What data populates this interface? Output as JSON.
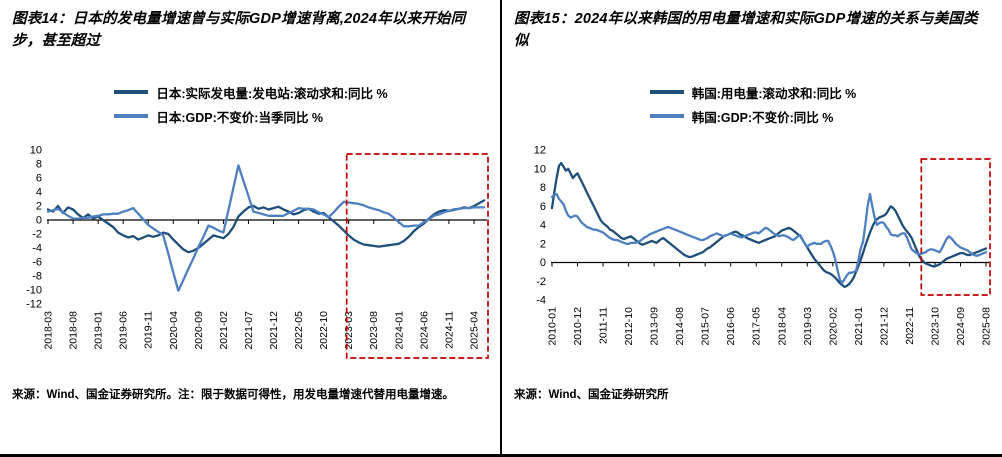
{
  "chart_data": [
    {
      "type": "line",
      "title": "图表14：日本的发电量增速曾与实际GDP增速背离,2024年以来开始同步，甚至超过",
      "source": "来源：Wind、国金证券研究所。注：限于数据可得性，用发电量增速代替用电量增速。",
      "ylim": [
        -12,
        10
      ],
      "ytick_step": 2,
      "label_step": 5,
      "x_tick_labels": [
        "2018-03",
        "2018-08",
        "2019-01",
        "2019-06",
        "2019-11",
        "2020-04",
        "2020-09",
        "2021-02",
        "2021-07",
        "2021-12",
        "2022-05",
        "2022-10",
        "2023-03",
        "2023-08",
        "2024-01",
        "2024-06",
        "2024-11",
        "2025-04"
      ],
      "series": [
        {
          "name": "日本:实际发电量:发电站:滚动求和:同比 %",
          "color": "#1F4E79",
          "values": [
            1.5,
            1.2,
            2.0,
            1.0,
            1.8,
            1.5,
            0.8,
            0.3,
            0.8,
            0.2,
            0.5,
            0.0,
            -0.5,
            -1.0,
            -1.8,
            -2.2,
            -2.5,
            -2.3,
            -2.8,
            -2.5,
            -2.2,
            -2.4,
            -2.2,
            -1.8,
            -2.0,
            -2.8,
            -3.5,
            -4.2,
            -4.6,
            -4.4,
            -4.0,
            -3.4,
            -2.8,
            -2.2,
            -2.4,
            -2.6,
            -2.0,
            -1.0,
            0.5,
            1.2,
            1.8,
            2.0,
            1.6,
            1.8,
            1.5,
            1.7,
            1.9,
            1.5,
            1.2,
            0.8,
            1.0,
            1.4,
            1.6,
            1.2,
            0.9,
            1.0,
            0.4,
            -0.2,
            -0.8,
            -1.5,
            -2.2,
            -2.8,
            -3.2,
            -3.5,
            -3.6,
            -3.7,
            -3.8,
            -3.7,
            -3.6,
            -3.5,
            -3.4,
            -3.0,
            -2.4,
            -1.6,
            -1.0,
            -0.5,
            0.2,
            0.8,
            1.2,
            1.4,
            1.3,
            1.5,
            1.6,
            1.8,
            1.7,
            2.0,
            2.4,
            2.8
          ]
        },
        {
          "name": "日本:GDP:不变价:当季同比 %",
          "color": "#4E7FBF",
          "values": [
            1.2,
            1.4,
            1.6,
            1.1,
            0.6,
            0.2,
            0.2,
            0.3,
            0.3,
            0.5,
            0.6,
            0.8,
            0.8,
            0.9,
            0.9,
            1.2,
            1.4,
            1.7,
            0.9,
            0.1,
            -0.7,
            -1.2,
            -1.7,
            -2.2,
            -4.8,
            -7.5,
            -10.1,
            -8.6,
            -7.0,
            -5.5,
            -3.9,
            -2.4,
            -0.8,
            -1.1,
            -1.5,
            -1.8,
            1.4,
            4.6,
            7.8,
            5.6,
            3.4,
            1.2,
            1.0,
            0.8,
            0.6,
            0.6,
            0.6,
            0.6,
            1.0,
            1.3,
            1.7,
            1.6,
            1.6,
            1.5,
            1.1,
            0.8,
            0.4,
            1.1,
            1.9,
            2.6,
            2.5,
            2.4,
            2.3,
            2.1,
            1.8,
            1.6,
            1.4,
            1.1,
            0.9,
            0.3,
            -0.3,
            -0.9,
            -0.9,
            -0.8,
            -0.8,
            -0.3,
            0.1,
            0.6,
            0.8,
            1.1,
            1.3,
            1.4,
            1.6,
            1.7,
            1.7,
            1.8,
            1.8,
            1.8
          ]
        }
      ],
      "highlight": {
        "from_index": 60,
        "to_index": 87,
        "color": "#C00000"
      }
    },
    {
      "type": "line",
      "title": "图表15：2024年以来韩国的用电量增速和实际GDP增速的关系与美国类似",
      "source": "来源：Wind、国金证券研究所",
      "ylim": [
        -4,
        12
      ],
      "ytick_step": 2,
      "label_step": 11,
      "x_tick_labels": [
        "2010-01",
        "2010-12",
        "2011-11",
        "2012-10",
        "2013-09",
        "2014-08",
        "2015-07",
        "2016-06",
        "2017-05",
        "2018-04",
        "2019-03",
        "2020-02",
        "2021-01",
        "2021-12",
        "2022-11",
        "2023-10",
        "2024-09",
        "2025-08"
      ],
      "series": [
        {
          "name": "韩国:用电量:滚动求和:同比 %",
          "color": "#1F4E79",
          "values": [
            5.8,
            7.5,
            9.0,
            10.3,
            10.6,
            10.2,
            9.8,
            10.0,
            9.5,
            9.0,
            9.3,
            9.5,
            9.0,
            8.5,
            8.0,
            7.5,
            7.0,
            6.5,
            6.0,
            5.5,
            5.0,
            4.5,
            4.2,
            4.0,
            3.8,
            3.5,
            3.4,
            3.2,
            3.0,
            2.8,
            2.6,
            2.5,
            2.6,
            2.7,
            2.8,
            2.6,
            2.4,
            2.2,
            2.0,
            1.9,
            2.0,
            2.1,
            2.2,
            2.3,
            2.2,
            2.1,
            2.3,
            2.5,
            2.6,
            2.4,
            2.2,
            2.0,
            1.8,
            1.6,
            1.4,
            1.2,
            1.0,
            0.8,
            0.7,
            0.6,
            0.6,
            0.7,
            0.8,
            0.9,
            1.0,
            1.1,
            1.3,
            1.5,
            1.6,
            1.8,
            2.0,
            2.2,
            2.4,
            2.6,
            2.8,
            2.9,
            3.0,
            3.1,
            3.2,
            3.3,
            3.2,
            3.0,
            2.9,
            2.8,
            2.6,
            2.5,
            2.4,
            2.3,
            2.2,
            2.1,
            2.2,
            2.3,
            2.4,
            2.5,
            2.6,
            2.7,
            2.8,
            3.0,
            3.2,
            3.4,
            3.5,
            3.6,
            3.7,
            3.6,
            3.4,
            3.2,
            3.0,
            2.8,
            2.4,
            2.0,
            1.6,
            1.2,
            0.8,
            0.4,
            0.1,
            -0.2,
            -0.5,
            -0.8,
            -1.0,
            -1.1,
            -1.2,
            -1.4,
            -1.6,
            -1.9,
            -2.2,
            -2.4,
            -2.6,
            -2.5,
            -2.3,
            -2.0,
            -1.6,
            -1.0,
            -0.4,
            0.3,
            1.0,
            1.8,
            2.5,
            3.2,
            3.8,
            4.3,
            4.6,
            4.8,
            4.9,
            5.0,
            5.2,
            5.6,
            6.0,
            5.8,
            5.5,
            5.0,
            4.5,
            4.0,
            3.6,
            3.3,
            3.0,
            2.6,
            2.0,
            1.4,
            0.8,
            0.4,
            0.1,
            -0.1,
            -0.2,
            -0.3,
            -0.4,
            -0.4,
            -0.3,
            -0.2,
            0.0,
            0.2,
            0.4,
            0.5,
            0.6,
            0.7,
            0.8,
            0.9,
            1.0,
            1.0,
            0.9,
            0.8,
            0.8,
            0.9,
            1.0,
            1.1,
            1.2,
            1.3,
            1.4,
            1.5
          ]
        },
        {
          "name": "韩国:GDP:不变价:同比 %",
          "color": "#4E7FBF",
          "values": [
            7.0,
            7.2,
            7.3,
            6.8,
            6.5,
            6.2,
            5.5,
            5.0,
            4.8,
            4.9,
            5.0,
            4.9,
            4.5,
            4.2,
            4.0,
            3.8,
            3.7,
            3.6,
            3.5,
            3.5,
            3.4,
            3.3,
            3.2,
            3.0,
            2.8,
            2.6,
            2.5,
            2.4,
            2.4,
            2.3,
            2.2,
            2.1,
            2.0,
            2.0,
            2.1,
            2.1,
            2.1,
            2.2,
            2.3,
            2.5,
            2.7,
            2.8,
            3.0,
            3.1,
            3.2,
            3.3,
            3.4,
            3.5,
            3.6,
            3.7,
            3.8,
            3.7,
            3.6,
            3.5,
            3.4,
            3.3,
            3.2,
            3.1,
            3.0,
            2.9,
            2.8,
            2.7,
            2.6,
            2.5,
            2.4,
            2.4,
            2.5,
            2.6,
            2.8,
            2.9,
            3.0,
            3.1,
            3.0,
            2.9,
            2.8,
            2.9,
            3.0,
            3.1,
            3.0,
            2.9,
            2.8,
            2.7,
            2.7,
            2.8,
            2.9,
            3.0,
            3.1,
            3.2,
            3.2,
            3.1,
            3.3,
            3.5,
            3.7,
            3.6,
            3.4,
            3.2,
            3.0,
            2.9,
            2.8,
            2.9,
            2.9,
            2.8,
            2.7,
            2.5,
            2.4,
            2.6,
            2.8,
            2.9,
            2.4,
            2.0,
            1.7,
            1.9,
            2.0,
            2.1,
            2.0,
            2.0,
            2.0,
            2.2,
            2.3,
            2.3,
            1.8,
            1.2,
            0.4,
            -0.8,
            -1.8,
            -2.2,
            -1.8,
            -1.4,
            -1.1,
            -1.1,
            -1.0,
            -0.9,
            0.2,
            1.5,
            2.2,
            4.0,
            6.0,
            7.3,
            6.0,
            4.8,
            4.0,
            4.2,
            4.3,
            4.2,
            3.8,
            3.5,
            3.0,
            2.9,
            2.9,
            2.8,
            3.0,
            3.1,
            3.1,
            2.6,
            2.0,
            1.4,
            1.2,
            1.0,
            0.9,
            0.9,
            1.0,
            1.1,
            1.3,
            1.4,
            1.4,
            1.3,
            1.2,
            1.1,
            1.5,
            2.0,
            2.5,
            2.8,
            2.6,
            2.3,
            2.0,
            1.8,
            1.6,
            1.5,
            1.4,
            1.3,
            1.1,
            0.9,
            0.8,
            0.7,
            0.8,
            0.9,
            1.0,
            1.1
          ]
        }
      ],
      "highlight": {
        "from_index": 160,
        "to_index": 187,
        "color": "#C00000"
      }
    }
  ]
}
